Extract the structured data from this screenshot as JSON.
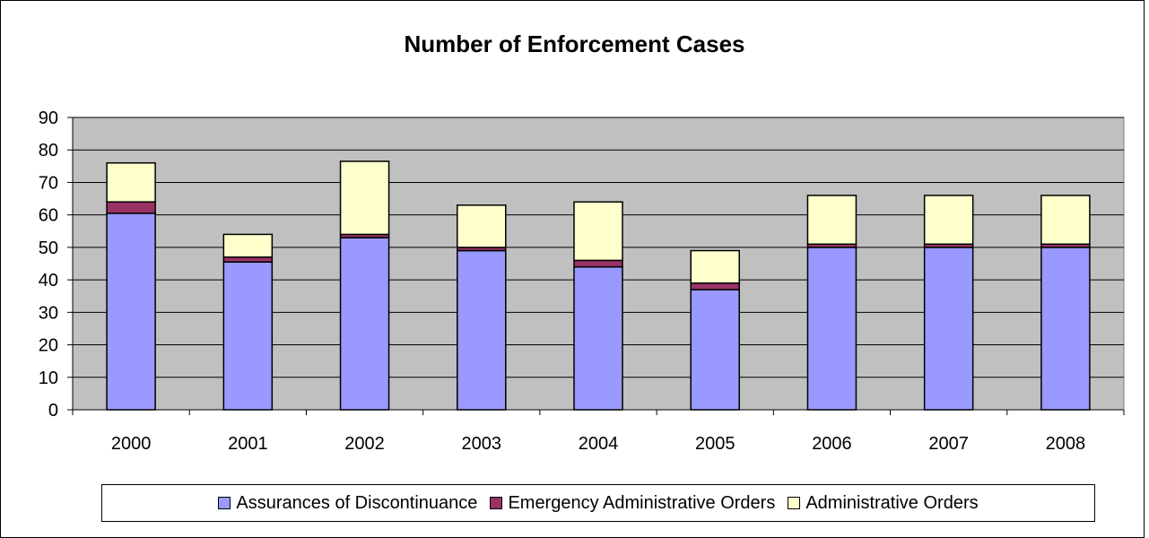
{
  "colors": {
    "plot_bg": "#c0c0c0",
    "assurances": "#9999ff",
    "emergency": "#993366",
    "administrative": "#ffffcc"
  },
  "chart_data": {
    "type": "bar",
    "stacked": true,
    "title": "Number of Enforcement Cases",
    "xlabel": "",
    "ylabel": "",
    "categories": [
      "2000",
      "2001",
      "2002",
      "2003",
      "2004",
      "2005",
      "2006",
      "2007",
      "2008"
    ],
    "ylim": [
      0,
      90
    ],
    "yticks": [
      "0",
      "10",
      "20",
      "30",
      "40",
      "50",
      "60",
      "70",
      "80",
      "90"
    ],
    "grid": true,
    "legend_position": "bottom",
    "series": [
      {
        "name": "Assurances of Discontinuance",
        "color": "#9999ff",
        "values": [
          60.5,
          45.5,
          53,
          49,
          44,
          37,
          50,
          50,
          50
        ]
      },
      {
        "name": "Emergency Administrative Orders",
        "color": "#993366",
        "values": [
          3.5,
          1.5,
          1,
          1,
          2,
          2,
          1,
          1,
          1
        ]
      },
      {
        "name": "Administrative Orders",
        "color": "#ffffcc",
        "values": [
          12,
          7,
          22.5,
          13,
          18,
          10,
          15,
          15,
          15
        ]
      }
    ]
  }
}
